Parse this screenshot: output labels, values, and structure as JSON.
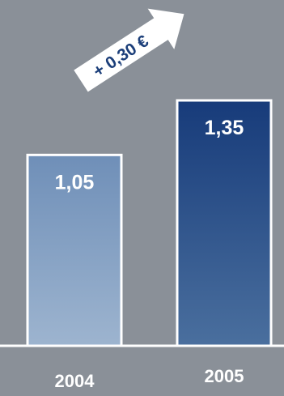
{
  "chart_data": {
    "type": "bar",
    "categories": [
      "2004",
      "2005"
    ],
    "values": [
      1.05,
      1.35
    ],
    "value_labels": [
      "1,05",
      "1,35"
    ],
    "ylim": [
      0,
      1.35
    ],
    "annotation": "+ 0,30 €",
    "title": "",
    "xlabel": "",
    "ylabel": "",
    "grid": false,
    "colors": {
      "background": "#8a9098",
      "bar_2004_top": "#6f8fb8",
      "bar_2004_bottom": "#9db4cf",
      "bar_2005_top": "#173b7a",
      "bar_2005_bottom": "#4a6f9e",
      "bar_border": "#ffffff",
      "baseline": "#ffffff",
      "arrow_fill": "#ffffff",
      "arrow_text": "#1c3f7a"
    }
  }
}
